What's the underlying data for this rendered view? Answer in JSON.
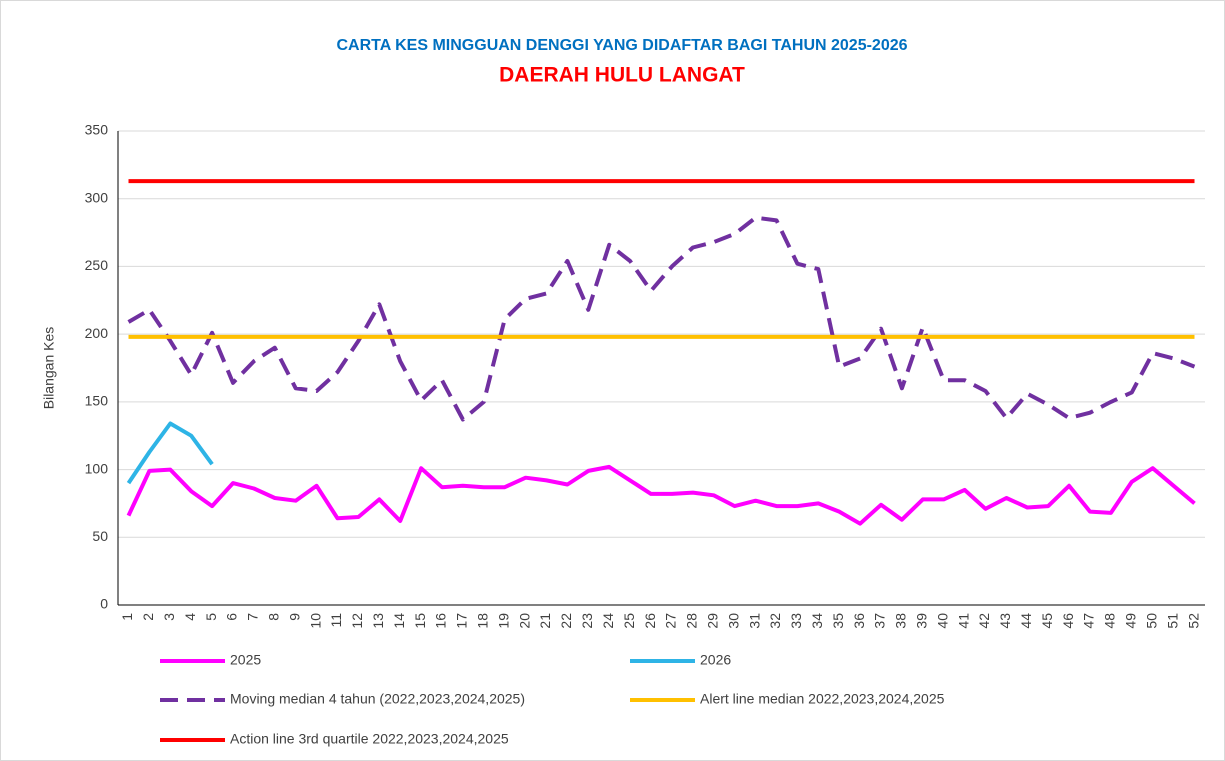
{
  "chart_data": {
    "type": "line",
    "title": "CARTA KES MINGGUAN DENGGI YANG DIDAFTAR BAGI TAHUN 2025-2026",
    "subtitle": "DAERAH HULU LANGAT",
    "y_label": "Bilangan Kes",
    "categories": [
      "1",
      "2",
      "3",
      "4",
      "5",
      "6",
      "7",
      "8",
      "9",
      "10",
      "11",
      "12",
      "13",
      "14",
      "15",
      "16",
      "17",
      "18",
      "19",
      "20",
      "21",
      "22",
      "23",
      "24",
      "25",
      "26",
      "27",
      "28",
      "29",
      "30",
      "31",
      "32",
      "33",
      "34",
      "35",
      "36",
      "37",
      "38",
      "39",
      "40",
      "41",
      "42",
      "43",
      "44",
      "45",
      "46",
      "47",
      "48",
      "49",
      "50",
      "51",
      "52"
    ],
    "series": [
      {
        "name": "2025",
        "color": "#ff00ff",
        "dashed": false,
        "values": [
          66,
          99,
          100,
          84,
          73,
          90,
          86,
          79,
          77,
          88,
          64,
          65,
          78,
          62,
          101,
          87,
          88,
          87,
          87,
          94,
          92,
          89,
          99,
          102,
          92,
          82,
          82,
          83,
          81,
          73,
          77,
          73,
          73,
          75,
          69,
          60,
          74,
          63,
          78,
          78,
          85,
          71,
          79,
          72,
          73,
          88,
          69,
          68,
          91,
          101,
          88,
          75
        ]
      },
      {
        "name": "2026",
        "color": "#2eb4e6",
        "dashed": false,
        "values": [
          90,
          113,
          134,
          125,
          104,
          null,
          null,
          null,
          null,
          null,
          null,
          null,
          null,
          null,
          null,
          null,
          null,
          null,
          null,
          null,
          null,
          null,
          null,
          null,
          null,
          null,
          null,
          null,
          null,
          null,
          null,
          null,
          null,
          null,
          null,
          null,
          null,
          null,
          null,
          null,
          null,
          null,
          null,
          null,
          null,
          null,
          null,
          null,
          null,
          null,
          null,
          null
        ]
      },
      {
        "name": "Moving median 4 tahun (2022,2023,2024,2025)",
        "color": "#7030a0",
        "dashed": true,
        "values": [
          209,
          218,
          195,
          170,
          201,
          164,
          180,
          190,
          160,
          158,
          172,
          195,
          222,
          180,
          151,
          166,
          137,
          150,
          211,
          226,
          230,
          254,
          218,
          266,
          254,
          232,
          250,
          264,
          268,
          274,
          286,
          284,
          252,
          248,
          176,
          182,
          204,
          160,
          205,
          166,
          166,
          158,
          138,
          156,
          148,
          138,
          142,
          150,
          157,
          186,
          182,
          176
        ]
      },
      {
        "name": "Alert line median 2022,2023,2024,2025",
        "color": "#ffc000",
        "dashed": false,
        "values": [
          198,
          198,
          198,
          198,
          198,
          198,
          198,
          198,
          198,
          198,
          198,
          198,
          198,
          198,
          198,
          198,
          198,
          198,
          198,
          198,
          198,
          198,
          198,
          198,
          198,
          198,
          198,
          198,
          198,
          198,
          198,
          198,
          198,
          198,
          198,
          198,
          198,
          198,
          198,
          198,
          198,
          198,
          198,
          198,
          198,
          198,
          198,
          198,
          198,
          198,
          198,
          198
        ]
      },
      {
        "name": "Action line 3rd quartile 2022,2023,2024,2025",
        "color": "#ff0000",
        "dashed": false,
        "values": [
          313,
          313,
          313,
          313,
          313,
          313,
          313,
          313,
          313,
          313,
          313,
          313,
          313,
          313,
          313,
          313,
          313,
          313,
          313,
          313,
          313,
          313,
          313,
          313,
          313,
          313,
          313,
          313,
          313,
          313,
          313,
          313,
          313,
          313,
          313,
          313,
          313,
          313,
          313,
          313,
          313,
          313,
          313,
          313,
          313,
          313,
          313,
          313,
          313,
          313,
          313,
          313
        ]
      }
    ],
    "ylim": [
      0,
      350
    ],
    "yticks": [
      0,
      50,
      100,
      150,
      200,
      250,
      300,
      350
    ],
    "grid": true
  }
}
